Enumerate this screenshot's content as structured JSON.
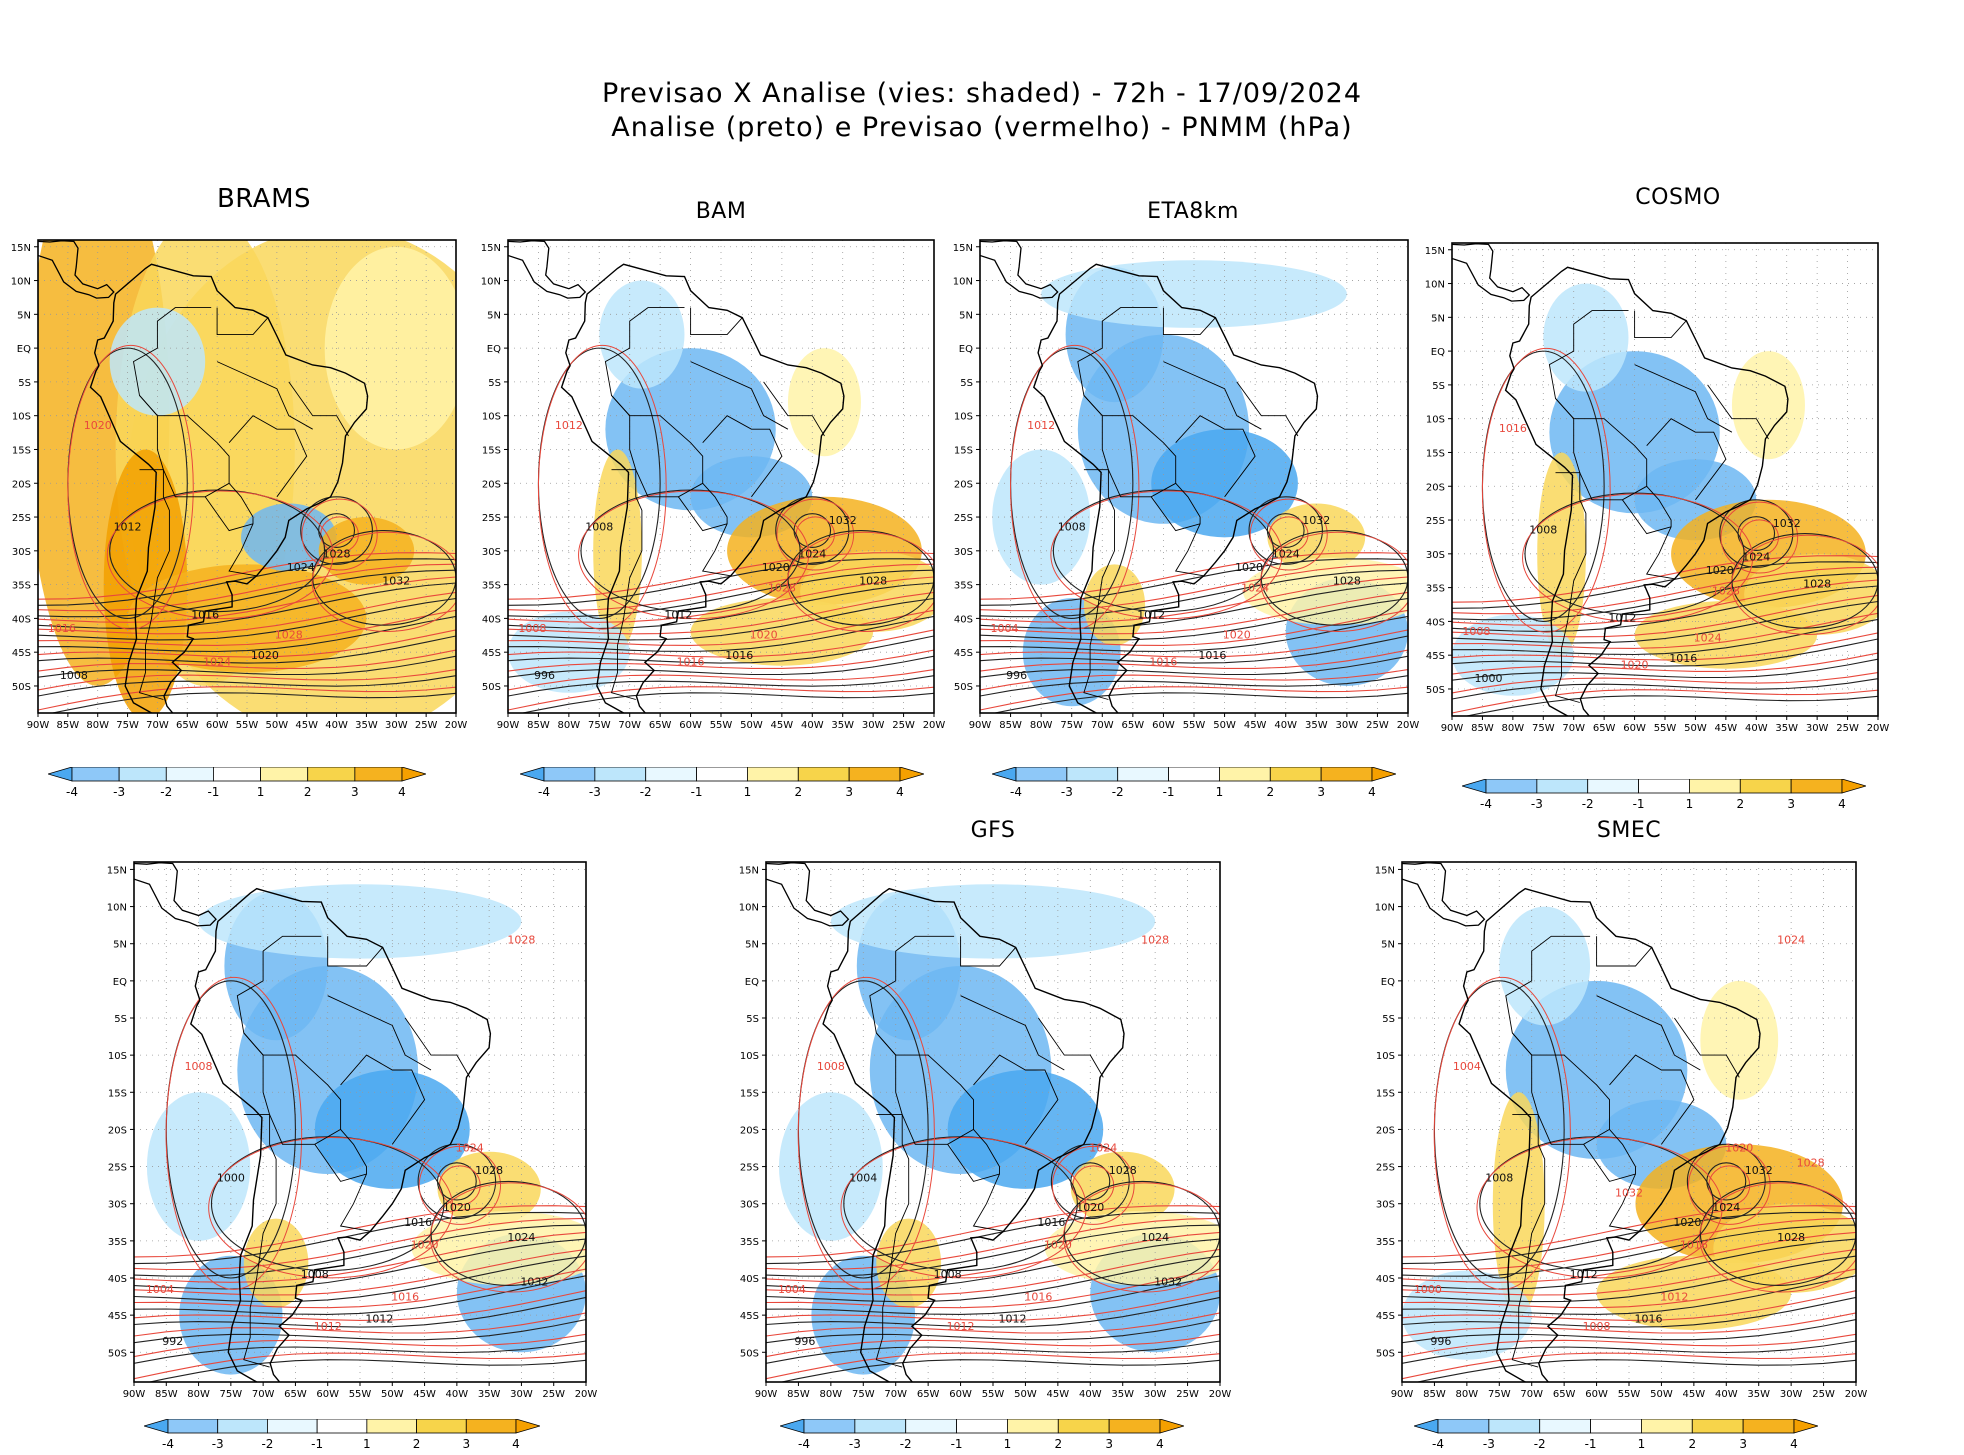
{
  "header": {
    "title_line1": "Previsao X Analise (vies: shaded) - 72h - 17/09/2024",
    "title_line2": "Analise (preto) e Previsao (vermelho) - PNMM (hPa)"
  },
  "axes": {
    "lon_labels": [
      "90W",
      "85W",
      "80W",
      "75W",
      "70W",
      "65W",
      "60W",
      "55W",
      "50W",
      "45W",
      "40W",
      "35W",
      "30W",
      "25W",
      "20W"
    ],
    "lat_labels": [
      "15N",
      "10N",
      "5N",
      "EQ",
      "5S",
      "10S",
      "15S",
      "20S",
      "25S",
      "30S",
      "35S",
      "40S",
      "45S",
      "50S"
    ]
  },
  "colorbar": {
    "labels": [
      "-4",
      "-3",
      "-2",
      "-1",
      "1",
      "2",
      "3",
      "4"
    ],
    "colors": [
      "#4aa8f0",
      "#8ec8f8",
      "#bde6fb",
      "#e8f8ff",
      "#ffffff",
      "#fff3a8",
      "#f7d44a",
      "#f5b21f",
      "#f5a000"
    ]
  },
  "panels": [
    {
      "id": "brams",
      "name": "BRAMS",
      "bias": "warm",
      "isobars_black": [
        "1008",
        "1012",
        "1016",
        "1020",
        "1024",
        "1028",
        "1032"
      ],
      "isobars_red": [
        "1016",
        "1020",
        "1024",
        "1028"
      ]
    },
    {
      "id": "bam",
      "name": "BAM",
      "bias": "mixed",
      "isobars_black": [
        "996",
        "1008",
        "1012",
        "1016",
        "1020",
        "1024",
        "1028",
        "1032"
      ],
      "isobars_red": [
        "1008",
        "1012",
        "1016",
        "1020",
        "1028"
      ]
    },
    {
      "id": "eta",
      "name": "ETA8km",
      "bias": "cold",
      "isobars_black": [
        "996",
        "1008",
        "1012",
        "1016",
        "1020",
        "1024",
        "1028",
        "1032"
      ],
      "isobars_red": [
        "1004",
        "1012",
        "1016",
        "1020",
        "1024"
      ]
    },
    {
      "id": "cosmo",
      "name": "COSMO",
      "bias": "mixed",
      "isobars_black": [
        "1000",
        "1008",
        "1012",
        "1016",
        "1020",
        "1024",
        "1028",
        "1032"
      ],
      "isobars_red": [
        "1008",
        "1016",
        "1020",
        "1024",
        "1028"
      ]
    },
    {
      "id": "panel5",
      "name": "",
      "bias": "cold",
      "isobars_black": [
        "992",
        "1000",
        "1008",
        "1012",
        "1016",
        "1020",
        "1024",
        "1028",
        "1032"
      ],
      "isobars_red": [
        "1004",
        "1008",
        "1012",
        "1016",
        "1020",
        "1024",
        "1028"
      ]
    },
    {
      "id": "gfs",
      "name": "GFS",
      "bias": "cold",
      "isobars_black": [
        "996",
        "1004",
        "1008",
        "1012",
        "1016",
        "1020",
        "1024",
        "1028",
        "1032"
      ],
      "isobars_red": [
        "1004",
        "1008",
        "1012",
        "1016",
        "1020",
        "1024",
        "1028"
      ]
    },
    {
      "id": "smec",
      "name": "SMEC",
      "bias": "mixed",
      "isobars_black": [
        "996",
        "1008",
        "1012",
        "1016",
        "1020",
        "1024",
        "1028",
        "1032"
      ],
      "isobars_red": [
        "1000",
        "1004",
        "1008",
        "1012",
        "1016",
        "1020",
        "1024",
        "1028",
        "1032"
      ]
    }
  ]
}
